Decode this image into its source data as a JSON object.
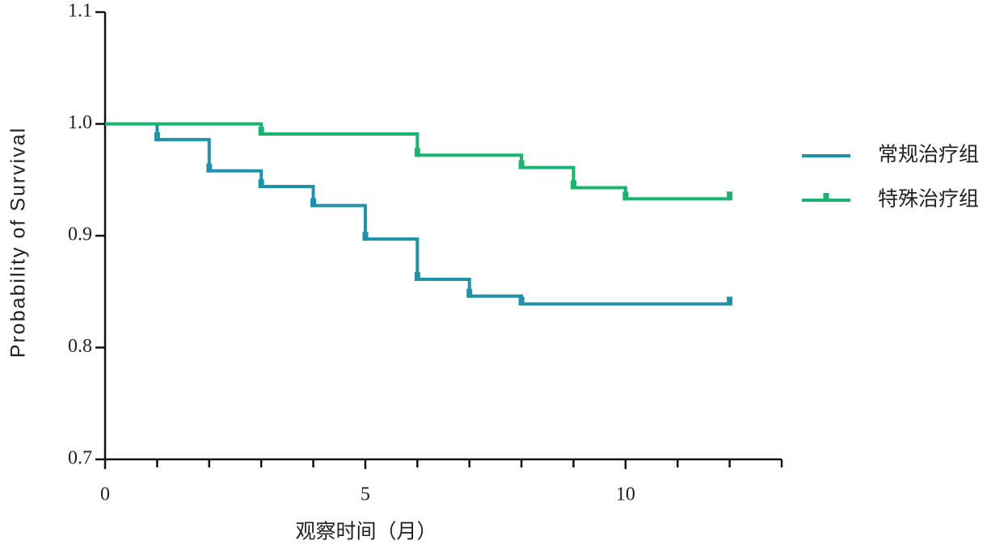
{
  "chart_data": {
    "type": "step",
    "xlabel": "观察时间（月）",
    "ylabel": "Probability of Survival",
    "xlim": [
      0,
      13
    ],
    "xticks": [
      0,
      5,
      10
    ],
    "xminorticks": [
      1,
      2,
      3,
      4,
      6,
      7,
      8,
      9,
      11,
      12,
      13
    ],
    "ylim": [
      0.7,
      1.1
    ],
    "yticks": [
      0.7,
      0.8,
      0.9,
      {
        "value": 1,
        "label": "1.0"
      },
      1.1
    ],
    "legend": "right",
    "series": [
      {
        "name": "常规治疗组",
        "color": "#1c93ab",
        "x": [
          0,
          1,
          2,
          3,
          4,
          5,
          6,
          7,
          8,
          12
        ],
        "values": [
          1,
          0.986,
          0.958,
          0.944,
          0.927,
          0.897,
          0.861,
          0.846,
          0.839,
          0.839
        ]
      },
      {
        "name": "特殊治疗组",
        "color": "#17b570",
        "x": [
          0,
          3,
          6,
          8,
          9,
          10,
          12
        ],
        "values": [
          1,
          0.991,
          0.972,
          0.961,
          0.943,
          0.933,
          0.933
        ]
      }
    ]
  }
}
